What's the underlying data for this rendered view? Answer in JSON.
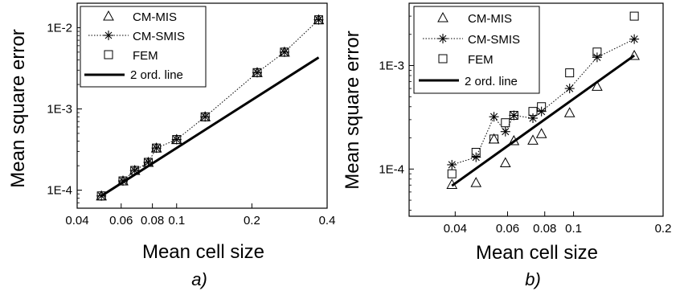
{
  "chart_data": [
    {
      "type": "scatter",
      "panel_label": "a)",
      "xlabel": "Mean cell size",
      "ylabel": "Mean square error",
      "x_scale": "log",
      "y_scale": "log",
      "xlim": [
        0.04,
        0.4
      ],
      "ylim": [
        6e-05,
        0.02
      ],
      "x_ticks": [
        0.04,
        0.06,
        0.08,
        0.1,
        0.2,
        0.4
      ],
      "x_tick_labels": [
        "0.04",
        "0.06",
        "0.08",
        "0.1",
        "0.2",
        "0.4"
      ],
      "y_ticks": [
        0.0001,
        0.001,
        0.01
      ],
      "y_tick_labels": [
        "1E-4",
        "1E-3",
        "1E-2"
      ],
      "legend_position": "top-left",
      "series": [
        {
          "name": "CM-MIS",
          "marker": "triangle",
          "x": [
            0.05,
            0.061,
            0.068,
            0.077,
            0.083,
            0.1,
            0.13,
            0.21,
            0.27,
            0.37
          ],
          "y": [
            8.5e-05,
            0.00013,
            0.000175,
            0.00022,
            0.00033,
            0.00042,
            0.0008,
            0.0028,
            0.005,
            0.0125
          ]
        },
        {
          "name": "CM-SMIS",
          "marker": "asterisk",
          "line": "dotted",
          "x": [
            0.05,
            0.061,
            0.068,
            0.077,
            0.083,
            0.1,
            0.13,
            0.21,
            0.27,
            0.37
          ],
          "y": [
            8.5e-05,
            0.00013,
            0.000175,
            0.00022,
            0.00033,
            0.00042,
            0.0008,
            0.0028,
            0.005,
            0.0125
          ]
        },
        {
          "name": "FEM",
          "marker": "square",
          "x": [
            0.05,
            0.061,
            0.068,
            0.077,
            0.083,
            0.1,
            0.13,
            0.21,
            0.27,
            0.37
          ],
          "y": [
            8.5e-05,
            0.00013,
            0.000175,
            0.00022,
            0.00033,
            0.00042,
            0.0008,
            0.0028,
            0.005,
            0.0125
          ]
        },
        {
          "name": "2 ord. line",
          "marker": "none",
          "line": "solid-thick",
          "x": [
            0.05,
            0.37
          ],
          "y": [
            8.5e-05,
            0.0043
          ]
        }
      ]
    },
    {
      "type": "scatter",
      "panel_label": "b)",
      "xlabel": "Mean cell size",
      "ylabel": "Mean square error",
      "x_scale": "log",
      "y_scale": "log",
      "xlim": [
        0.028,
        0.2
      ],
      "ylim": [
        3.5e-05,
        0.004
      ],
      "x_ticks": [
        0.04,
        0.06,
        0.08,
        0.1,
        0.2
      ],
      "x_tick_labels": [
        "0.04",
        "0.06",
        "0.08",
        "0.1",
        "0.2"
      ],
      "y_ticks": [
        0.0001,
        0.001
      ],
      "y_tick_labels": [
        "1E-4",
        "1E-3"
      ],
      "legend_position": "top-left",
      "series": [
        {
          "name": "CM-MIS",
          "marker": "triangle",
          "x": [
            0.039,
            0.047,
            0.054,
            0.059,
            0.063,
            0.073,
            0.078,
            0.097,
            0.12,
            0.16
          ],
          "y": [
            7.1e-05,
            7.4e-05,
            0.000195,
            0.000115,
            0.000188,
            0.00019,
            0.00022,
            0.00035,
            0.00063,
            0.00125
          ]
        },
        {
          "name": "CM-SMIS",
          "marker": "asterisk",
          "line": "dotted",
          "x": [
            0.039,
            0.047,
            0.054,
            0.059,
            0.063,
            0.073,
            0.078,
            0.097,
            0.12,
            0.16
          ],
          "y": [
            0.00011,
            0.00013,
            0.00032,
            0.00023,
            0.00033,
            0.00031,
            0.00036,
            0.0006,
            0.0012,
            0.0018
          ]
        },
        {
          "name": "FEM",
          "marker": "square",
          "x": [
            0.039,
            0.047,
            0.054,
            0.059,
            0.063,
            0.073,
            0.078,
            0.097,
            0.12,
            0.16
          ],
          "y": [
            9e-05,
            0.000145,
            0.000195,
            0.00028,
            0.00033,
            0.00036,
            0.0004,
            0.00085,
            0.00135,
            0.003
          ]
        },
        {
          "name": "2 ord. line",
          "marker": "none",
          "line": "solid-thick",
          "x": [
            0.039,
            0.16
          ],
          "y": [
            6.9e-05,
            0.00125
          ]
        }
      ]
    }
  ]
}
